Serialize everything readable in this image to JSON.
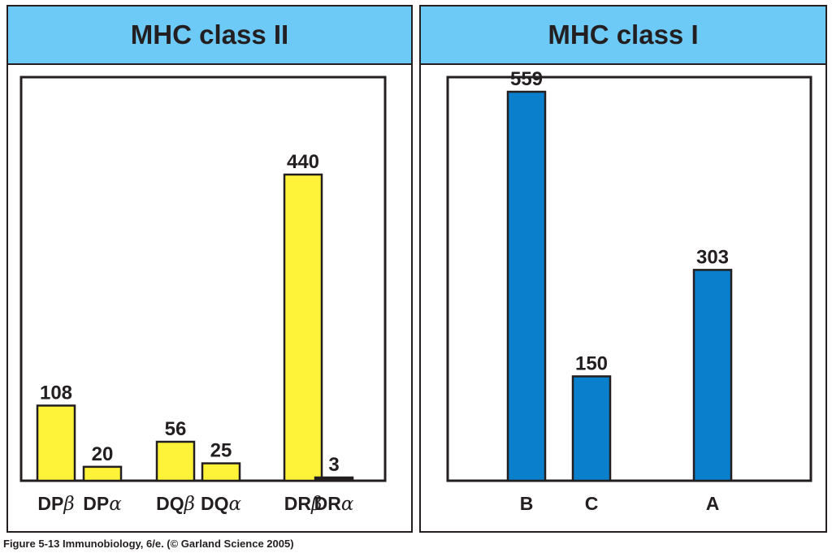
{
  "chart_data": [
    {
      "type": "bar",
      "title": "MHC class II",
      "categories": [
        "DPβ",
        "DPα",
        "DQβ",
        "DQα",
        "DRβ",
        "DRα"
      ],
      "category_parts": [
        {
          "prefix": "DP",
          "greek": "β"
        },
        {
          "prefix": "DP",
          "greek": "α"
        },
        {
          "prefix": "DQ",
          "greek": "β"
        },
        {
          "prefix": "DQ",
          "greek": "α"
        },
        {
          "prefix": "DR",
          "greek": "β"
        },
        {
          "prefix": "DR",
          "greek": "α"
        }
      ],
      "values": [
        108,
        20,
        56,
        25,
        440,
        3
      ],
      "ylim": [
        0,
        580
      ],
      "bar_color": "#fff33a",
      "special_colors": {
        "5": "#231f20"
      },
      "grid": false,
      "legend": "none"
    },
    {
      "type": "bar",
      "title": "MHC class I",
      "categories": [
        "B",
        "C",
        "A"
      ],
      "values": [
        559,
        150,
        303
      ],
      "ylim": [
        0,
        580
      ],
      "bar_color": "#0a7fcc",
      "grid": false,
      "legend": "none"
    }
  ],
  "caption": "Figure 5-13  Immunobiology, 6/e. (© Garland Science 2005)"
}
